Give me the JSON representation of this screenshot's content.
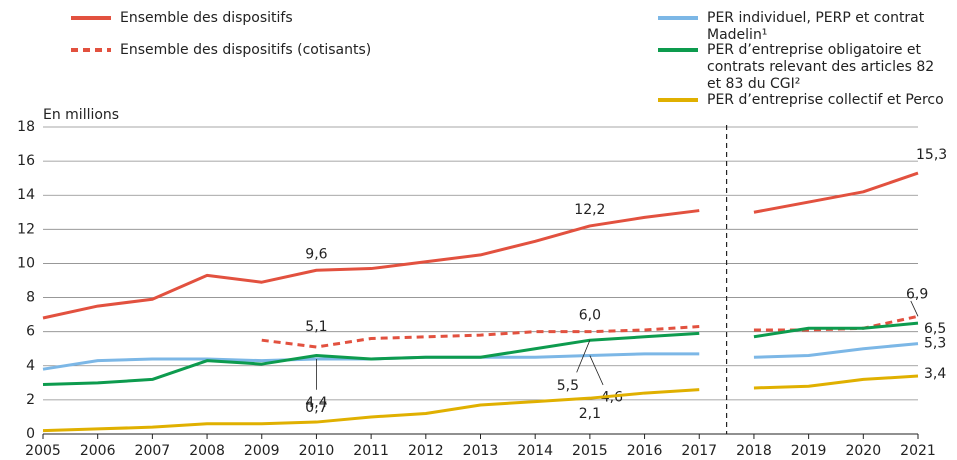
{
  "chart_data": {
    "type": "line",
    "y_label": "En millions",
    "x": [
      2005,
      2006,
      2007,
      2008,
      2009,
      2010,
      2011,
      2012,
      2013,
      2014,
      2015,
      2016,
      2017,
      2018,
      2019,
      2020,
      2021
    ],
    "xlim": [
      2005,
      2021
    ],
    "xticks": [
      2005,
      2006,
      2007,
      2008,
      2009,
      2010,
      2011,
      2012,
      2013,
      2014,
      2015,
      2016,
      2017,
      2018,
      2019,
      2020,
      2021
    ],
    "ylim": [
      0,
      18
    ],
    "yticks": [
      0,
      2,
      4,
      6,
      8,
      10,
      12,
      14,
      16,
      18
    ],
    "grid": true,
    "vline": 2017.5,
    "series": [
      {
        "name": "Ensemble des dispositifs",
        "color": "#e2513f",
        "dash": false,
        "values": [
          6.8,
          7.5,
          7.9,
          9.3,
          8.9,
          9.6,
          9.7,
          10.1,
          10.5,
          11.3,
          12.2,
          12.7,
          13.1,
          13.0,
          13.6,
          14.2,
          15.3
        ],
        "value_labels": [
          null,
          null,
          null,
          null,
          null,
          "9,6",
          null,
          null,
          null,
          null,
          "12,2",
          null,
          null,
          null,
          null,
          null,
          "15,3"
        ]
      },
      {
        "name": "Ensemble des dispositifs (cotisants)",
        "color": "#e2513f",
        "dash": true,
        "values": [
          null,
          null,
          null,
          null,
          5.5,
          5.1,
          5.6,
          5.7,
          5.8,
          6.0,
          6.0,
          6.1,
          6.3,
          6.1,
          6.1,
          6.2,
          6.9
        ],
        "value_labels": [
          null,
          null,
          null,
          null,
          null,
          "5,1",
          null,
          null,
          null,
          null,
          "6,0",
          null,
          null,
          null,
          null,
          null,
          "6,9"
        ]
      },
      {
        "name": "PER individuel, PERP et contrat Madelin¹",
        "color": "#7cb7e6",
        "dash": false,
        "values": [
          3.8,
          4.3,
          4.4,
          4.4,
          4.3,
          4.4,
          4.4,
          4.5,
          4.5,
          4.5,
          4.6,
          4.7,
          4.7,
          4.5,
          4.6,
          5.0,
          5.3
        ],
        "value_labels": [
          null,
          null,
          null,
          null,
          null,
          "4,4",
          null,
          null,
          null,
          null,
          "4,6",
          null,
          null,
          null,
          null,
          null,
          "5,3"
        ]
      },
      {
        "name": "PER d’entreprise obligatoire et contrats relevant des articles 82 et 83 du CGI²",
        "color": "#0d9b4e",
        "dash": false,
        "values": [
          2.9,
          3.0,
          3.2,
          4.3,
          4.1,
          4.6,
          4.4,
          4.5,
          4.5,
          5.0,
          5.5,
          5.7,
          5.9,
          5.7,
          6.2,
          6.2,
          6.5
        ],
        "value_labels": [
          null,
          null,
          null,
          null,
          null,
          null,
          null,
          null,
          null,
          null,
          "5,5",
          null,
          null,
          null,
          null,
          null,
          "6,5"
        ]
      },
      {
        "name": "PER d’entreprise collectif et Perco",
        "color": "#e0b000",
        "dash": false,
        "values": [
          0.2,
          0.3,
          0.4,
          0.6,
          0.6,
          0.7,
          1.0,
          1.2,
          1.7,
          1.9,
          2.1,
          2.4,
          2.6,
          2.7,
          2.8,
          3.2,
          3.4
        ],
        "value_labels": [
          null,
          null,
          null,
          null,
          null,
          "0,7",
          null,
          null,
          null,
          null,
          "2,1",
          null,
          null,
          null,
          null,
          null,
          "3,4"
        ]
      }
    ]
  }
}
